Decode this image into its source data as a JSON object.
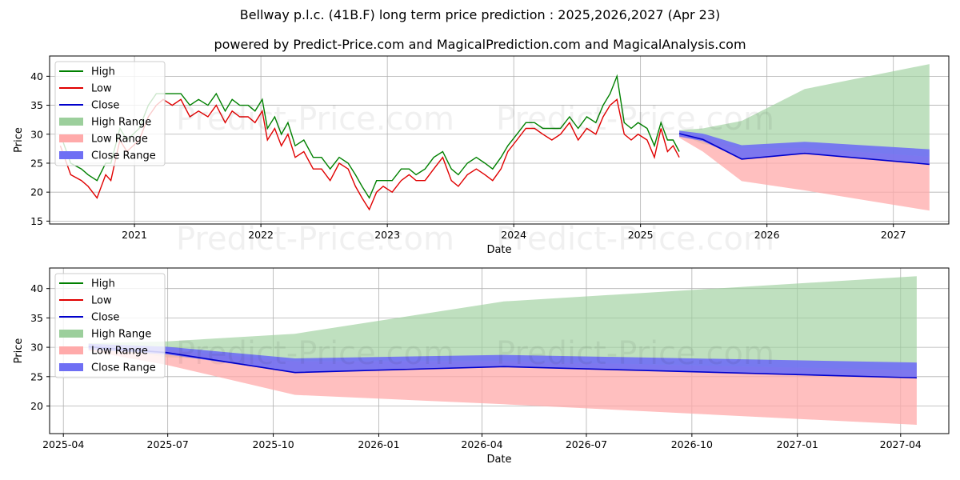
{
  "title": "Bellway p.l.c. (41B.F) long term price prediction : 2025,2026,2027 (Apr 23)",
  "subtitle": "powered by Predict-Price.com and MagicalPrediction.com and MagicalAnalysis.com",
  "watermark": "Predict-Price.com",
  "colors": {
    "high": "#008000",
    "low": "#e00000",
    "close": "#0000cc",
    "high_range": "#9ccf9c",
    "low_range": "#ffaaaa",
    "close_range": "#6f6ff4",
    "grid": "#b0b0b0"
  },
  "legend": {
    "items": [
      {
        "label": "High",
        "kind": "line",
        "color_key": "high"
      },
      {
        "label": "Low",
        "kind": "line",
        "color_key": "low"
      },
      {
        "label": "Close",
        "kind": "line",
        "color_key": "close"
      },
      {
        "label": "High Range",
        "kind": "patch",
        "color_key": "high_range"
      },
      {
        "label": "Low Range",
        "kind": "patch",
        "color_key": "low_range"
      },
      {
        "label": "Close Range",
        "kind": "patch",
        "color_key": "close_range"
      }
    ],
    "placement": "upper-left"
  },
  "chart_data": [
    {
      "type": "line",
      "xlabel": "Date",
      "ylabel": "Price",
      "xlim": [
        "2020-05-01",
        "2027-06-10"
      ],
      "ylim": [
        14.5,
        43.5
      ],
      "x_ticks": [
        "2021-01-01",
        "2022-01-01",
        "2023-01-01",
        "2024-01-01",
        "2025-01-01",
        "2026-01-01",
        "2027-01-01"
      ],
      "x_tick_labels": [
        "2021",
        "2022",
        "2023",
        "2024",
        "2025",
        "2026",
        "2027"
      ],
      "y_ticks": [
        15,
        20,
        25,
        30,
        35,
        40
      ],
      "grid": true,
      "history": {
        "x": [
          "2020-06-01",
          "2020-07-01",
          "2020-08-01",
          "2020-08-20",
          "2020-09-15",
          "2020-10-10",
          "2020-10-25",
          "2020-11-20",
          "2020-12-10",
          "2021-01-15",
          "2021-02-10",
          "2021-03-05",
          "2021-03-25",
          "2021-04-20",
          "2021-05-15",
          "2021-06-10",
          "2021-07-05",
          "2021-08-01",
          "2021-08-25",
          "2021-09-20",
          "2021-10-10",
          "2021-11-01",
          "2021-11-25",
          "2021-12-15",
          "2022-01-05",
          "2022-01-20",
          "2022-02-10",
          "2022-03-01",
          "2022-03-20",
          "2022-04-10",
          "2022-05-05",
          "2022-06-01",
          "2022-06-25",
          "2022-07-20",
          "2022-08-15",
          "2022-09-10",
          "2022-10-01",
          "2022-10-20",
          "2022-11-10",
          "2022-12-01",
          "2022-12-20",
          "2023-01-15",
          "2023-02-10",
          "2023-03-05",
          "2023-03-25",
          "2023-04-20",
          "2023-05-15",
          "2023-06-10",
          "2023-07-05",
          "2023-07-25",
          "2023-08-20",
          "2023-09-15",
          "2023-10-10",
          "2023-11-01",
          "2023-11-25",
          "2023-12-15",
          "2024-01-10",
          "2024-02-05",
          "2024-03-01",
          "2024-03-25",
          "2024-04-20",
          "2024-05-15",
          "2024-06-10",
          "2024-07-05",
          "2024-07-30",
          "2024-08-25",
          "2024-09-15",
          "2024-10-05",
          "2024-10-25",
          "2024-11-15",
          "2024-12-05",
          "2024-12-25",
          "2025-01-20",
          "2025-02-10",
          "2025-03-01",
          "2025-03-20",
          "2025-04-05",
          "2025-04-23"
        ],
        "low": [
          28,
          23,
          22,
          21,
          19,
          23,
          22,
          29,
          27,
          29,
          33,
          35,
          36,
          35,
          36,
          33,
          34,
          33,
          35,
          32,
          34,
          33,
          33,
          32,
          34,
          29,
          31,
          28,
          30,
          26,
          27,
          24,
          24,
          22,
          25,
          24,
          21,
          19,
          17,
          20,
          21,
          20,
          22,
          23,
          22,
          22,
          24,
          26,
          22,
          21,
          23,
          24,
          23,
          22,
          24,
          27,
          29,
          31,
          31,
          30,
          29,
          30,
          32,
          29,
          31,
          30,
          33,
          35,
          36,
          30,
          29,
          30,
          29,
          26,
          31,
          27,
          28,
          26
        ],
        "high": [
          30,
          25,
          24,
          23,
          22,
          25,
          25,
          31,
          29,
          31,
          35,
          37,
          37,
          37,
          37,
          35,
          36,
          35,
          37,
          34,
          36,
          35,
          35,
          34,
          36,
          31,
          33,
          30,
          32,
          28,
          29,
          26,
          26,
          24,
          26,
          25,
          23,
          21,
          19,
          22,
          22,
          22,
          24,
          24,
          23,
          24,
          26,
          27,
          24,
          23,
          25,
          26,
          25,
          24,
          26,
          28,
          30,
          32,
          32,
          31,
          31,
          31,
          33,
          31,
          33,
          32,
          35,
          37,
          40,
          32,
          31,
          32,
          31,
          28,
          32,
          29,
          29,
          27
        ]
      },
      "forecast": {
        "x": [
          "2025-04-23",
          "2025-06-30",
          "2025-10-20",
          "2026-04-20",
          "2027-04-15"
        ],
        "close": [
          30.1,
          29.1,
          25.7,
          26.7,
          24.8
        ],
        "high_range": [
          [
            30.1,
            30.7
          ],
          [
            28.3,
            31.0
          ],
          [
            27.6,
            32.3
          ],
          [
            27.6,
            37.8
          ],
          [
            26.1,
            42.1
          ]
        ],
        "low_range": [
          [
            29.4,
            30.1
          ],
          [
            27.0,
            29.6
          ],
          [
            21.9,
            27.6
          ],
          [
            20.3,
            27.6
          ],
          [
            16.8,
            26.1
          ]
        ],
        "close_range": [
          [
            29.6,
            30.6
          ],
          [
            28.8,
            30.1
          ],
          [
            25.7,
            28.1
          ],
          [
            26.7,
            28.7
          ],
          [
            24.8,
            27.4
          ]
        ]
      }
    },
    {
      "type": "line",
      "xlabel": "Date",
      "ylabel": "Price",
      "xlim": [
        "2025-03-20",
        "2027-05-13"
      ],
      "ylim": [
        15.3,
        43.5
      ],
      "x_ticks": [
        "2025-04-01",
        "2025-07-01",
        "2025-10-01",
        "2026-01-01",
        "2026-04-01",
        "2026-07-01",
        "2026-10-01",
        "2027-01-01",
        "2027-04-01"
      ],
      "x_tick_labels": [
        "2025-04",
        "2025-07",
        "2025-10",
        "2026-01",
        "2026-04",
        "2026-07",
        "2026-10",
        "2027-01",
        "2027-04"
      ],
      "y_ticks": [
        20,
        25,
        30,
        35,
        40
      ],
      "grid": true
    }
  ]
}
